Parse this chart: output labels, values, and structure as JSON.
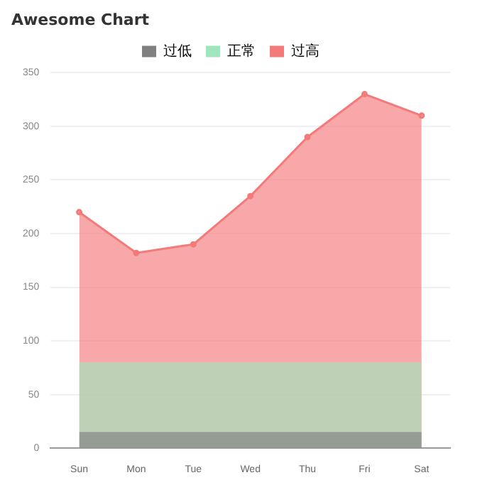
{
  "chart_data": {
    "type": "area",
    "title": "Awesome Chart",
    "categories": [
      "Sun",
      "Mon",
      "Tue",
      "Wed",
      "Thu",
      "Fri",
      "Sat"
    ],
    "series": [
      {
        "name": "过低",
        "color": "#808080",
        "values": [
          15,
          15,
          15,
          15,
          15,
          15,
          15
        ]
      },
      {
        "name": "正常",
        "color": "#9ee6be",
        "values": [
          80,
          80,
          80,
          80,
          80,
          80,
          80
        ]
      },
      {
        "name": "过高",
        "color": "#f47a7a",
        "values": [
          220,
          182,
          190,
          235,
          290,
          330,
          310
        ],
        "marker": "circle"
      }
    ],
    "ylim": [
      0,
      350
    ],
    "yticks": [
      0,
      50,
      100,
      150,
      200,
      250,
      300,
      350
    ],
    "grid": "y",
    "legend": "top"
  }
}
